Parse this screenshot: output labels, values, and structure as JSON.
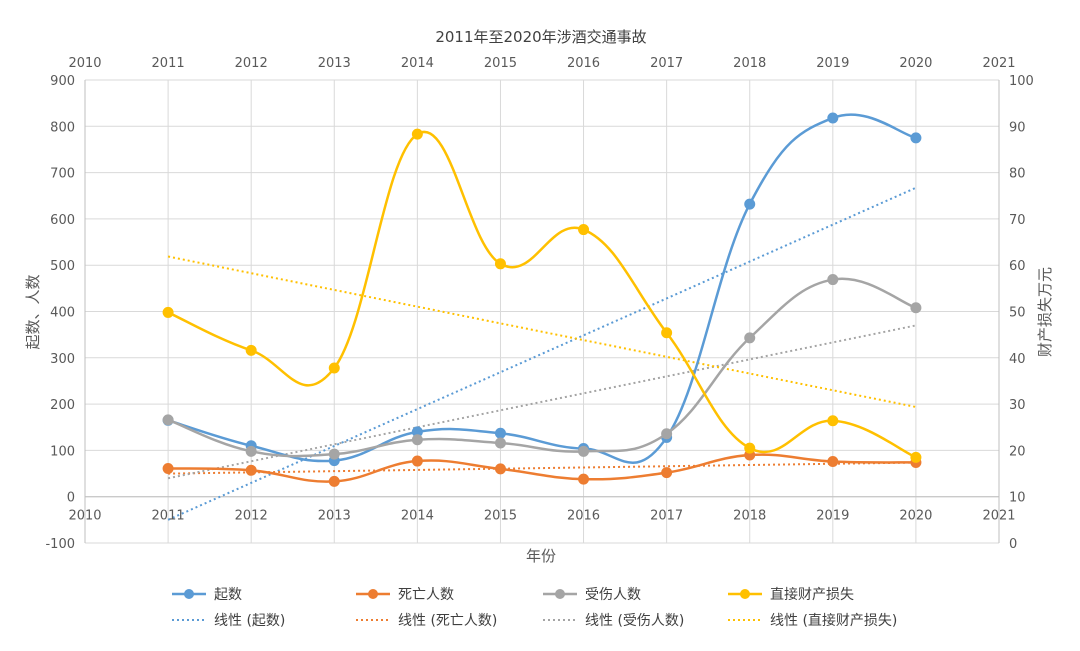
{
  "chart_data": {
    "type": "line",
    "title": "2011年至2020年涉酒交通事故",
    "xlabel": "年份",
    "ylabel_left": "起数、人数",
    "ylabel_right": "财产损失万元",
    "x_ticks": [
      "2010",
      "2011",
      "2012",
      "2013",
      "2014",
      "2015",
      "2016",
      "2017",
      "2018",
      "2019",
      "2020",
      "2021"
    ],
    "x": [
      2011,
      2012,
      2013,
      2014,
      2015,
      2016,
      2017,
      2018,
      2019,
      2020
    ],
    "xlim": [
      2010,
      2021
    ],
    "ylim_left": [
      -100,
      900
    ],
    "ylim_right": [
      0,
      100
    ],
    "y_ticks_left": [
      "900",
      "800",
      "700",
      "600",
      "500",
      "400",
      "300",
      "200",
      "100",
      "0",
      "-100"
    ],
    "y_ticks_right": [
      "100",
      "90",
      "80",
      "70",
      "60",
      "50",
      "40",
      "30",
      "20",
      "10",
      "0"
    ],
    "grid": true,
    "legend_position": "bottom",
    "series": [
      {
        "name": "起数",
        "axis": "left",
        "color": "#5B9BD5",
        "values": [
          165,
          110,
          78,
          140,
          137,
          104,
          128,
          632,
          818,
          775
        ]
      },
      {
        "name": "死亡人数",
        "axis": "left",
        "color": "#ED7D31",
        "values": [
          61,
          57,
          33,
          77,
          60,
          38,
          52,
          90,
          76,
          74
        ]
      },
      {
        "name": "受伤人数",
        "axis": "left",
        "color": "#A5A5A5",
        "values": [
          166,
          98,
          92,
          123,
          116,
          98,
          136,
          343,
          469,
          408
        ]
      },
      {
        "name": "直接财产损失",
        "axis": "right",
        "color": "#FFC000",
        "values": [
          49.8,
          41.6,
          37.8,
          88.3,
          60.3,
          67.7,
          45.4,
          20.5,
          26.4,
          18.5
        ]
      }
    ],
    "trendlines": [
      {
        "name": "线性 (起数)",
        "color": "#5B9BD5"
      },
      {
        "name": "线性 (死亡人数)",
        "color": "#ED7D31"
      },
      {
        "name": "线性 (受伤人数)",
        "color": "#A5A5A5"
      },
      {
        "name": "线性 (直接财产损失)",
        "color": "#FFC000"
      }
    ]
  }
}
